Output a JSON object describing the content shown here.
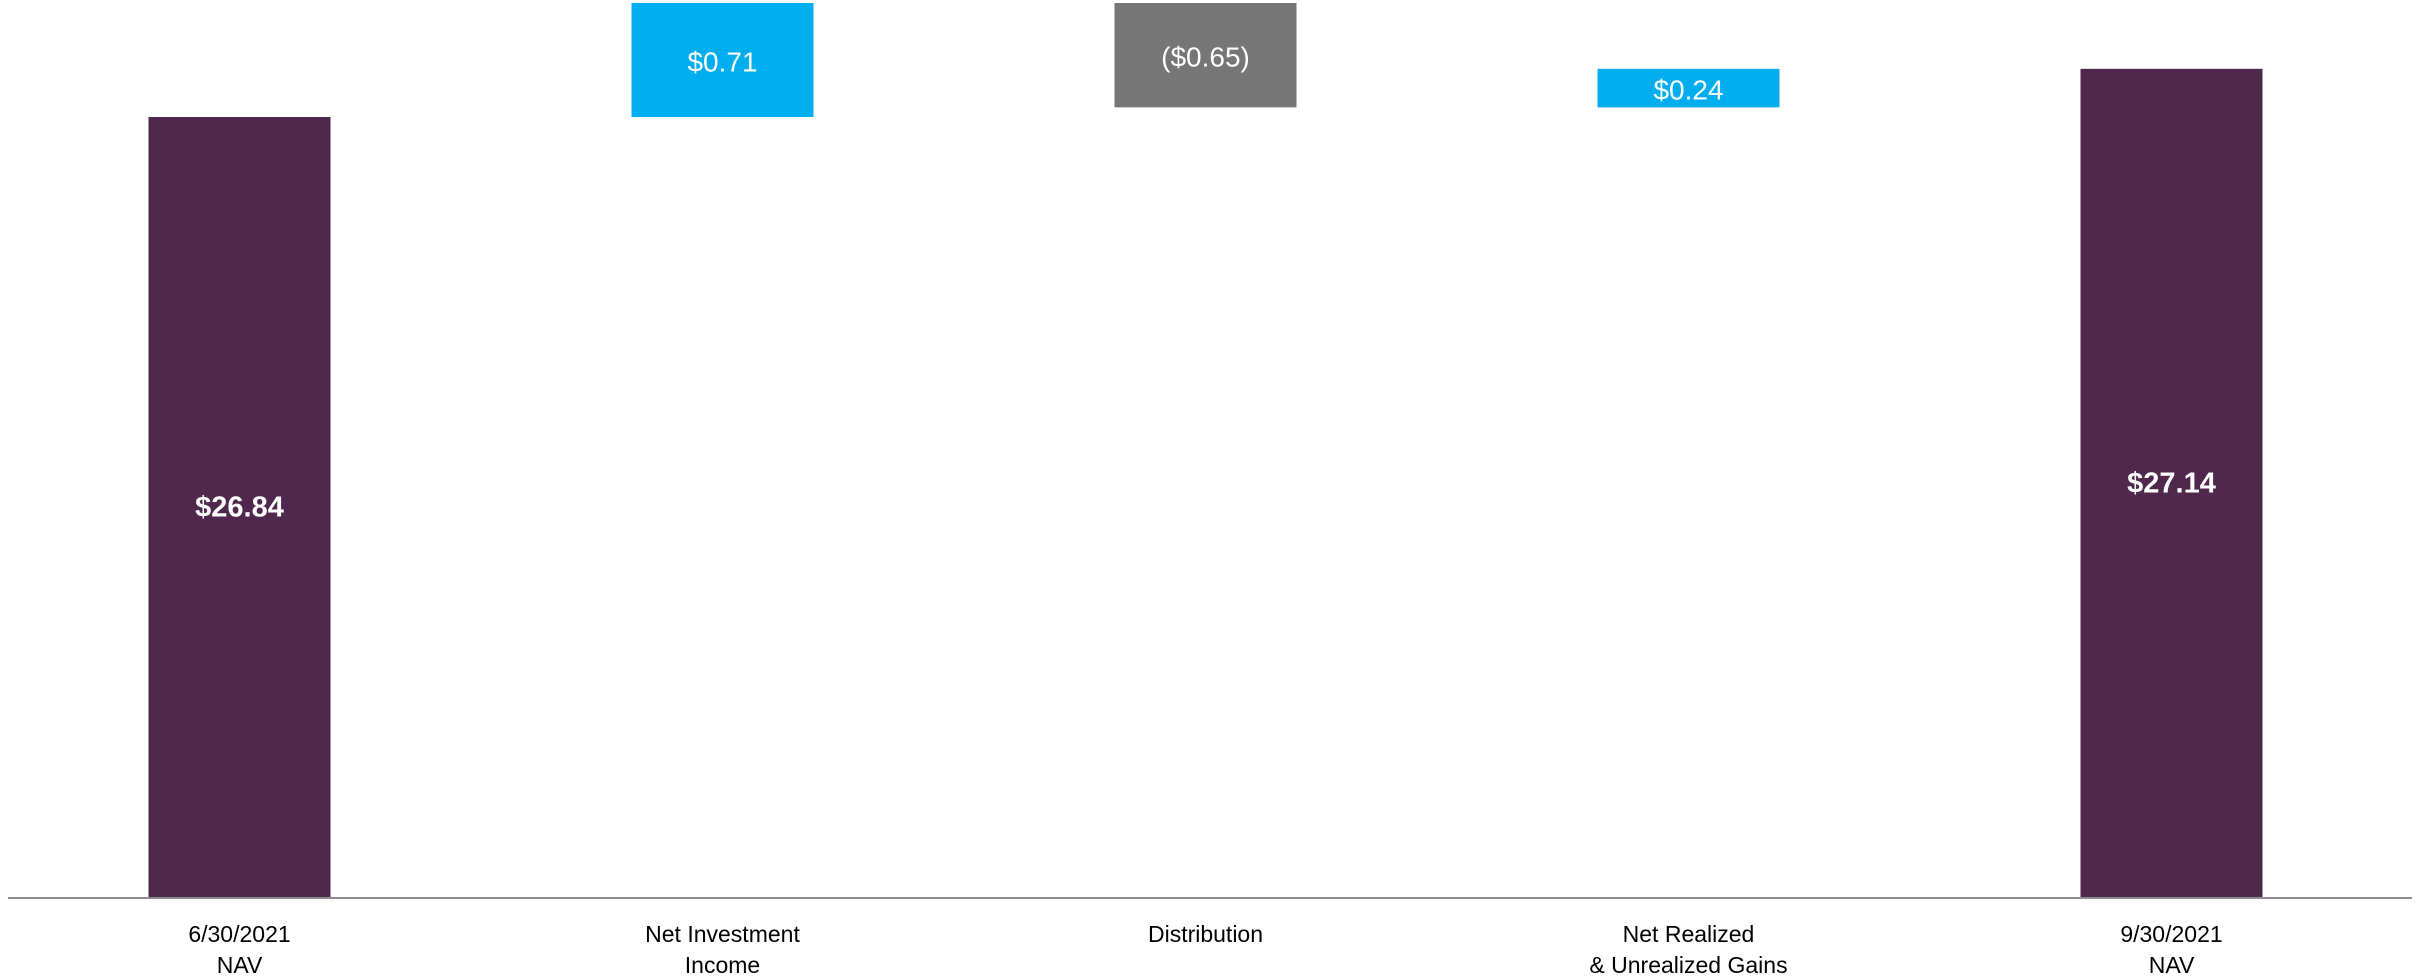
{
  "chart_data": {
    "type": "bar",
    "subtype": "waterfall",
    "categories": [
      [
        "6/30/2021",
        "NAV"
      ],
      [
        "Net Investment",
        "Income"
      ],
      [
        "Distribution"
      ],
      [
        "Net Realized",
        "& Unrealized Gains"
      ],
      [
        "9/30/2021",
        "NAV"
      ]
    ],
    "bars": [
      {
        "kind": "total",
        "start": 0,
        "end": 26.84,
        "label": "$26.84",
        "color": "#51284d"
      },
      {
        "kind": "increase",
        "start": 26.84,
        "end": 27.55,
        "label": "$0.71",
        "color": "#00adef"
      },
      {
        "kind": "decrease",
        "start": 27.55,
        "end": 26.9,
        "label": "($0.65)",
        "color": "#767676"
      },
      {
        "kind": "increase",
        "start": 26.9,
        "end": 27.14,
        "label": "$0.24",
        "color": "#00adef"
      },
      {
        "kind": "total",
        "start": 0,
        "end": 27.14,
        "label": "$27.14",
        "color": "#51284d"
      }
    ],
    "values": [
      26.84,
      0.71,
      -0.65,
      0.24,
      27.14
    ],
    "title": "",
    "xlabel": "",
    "ylabel": "",
    "ylim": [
      0,
      27.55
    ],
    "grid": false,
    "legend": "none",
    "colors": {
      "nav": "#51284d",
      "increase": "#00adef",
      "decrease": "#767676",
      "axis": "#8c8c8c"
    }
  }
}
